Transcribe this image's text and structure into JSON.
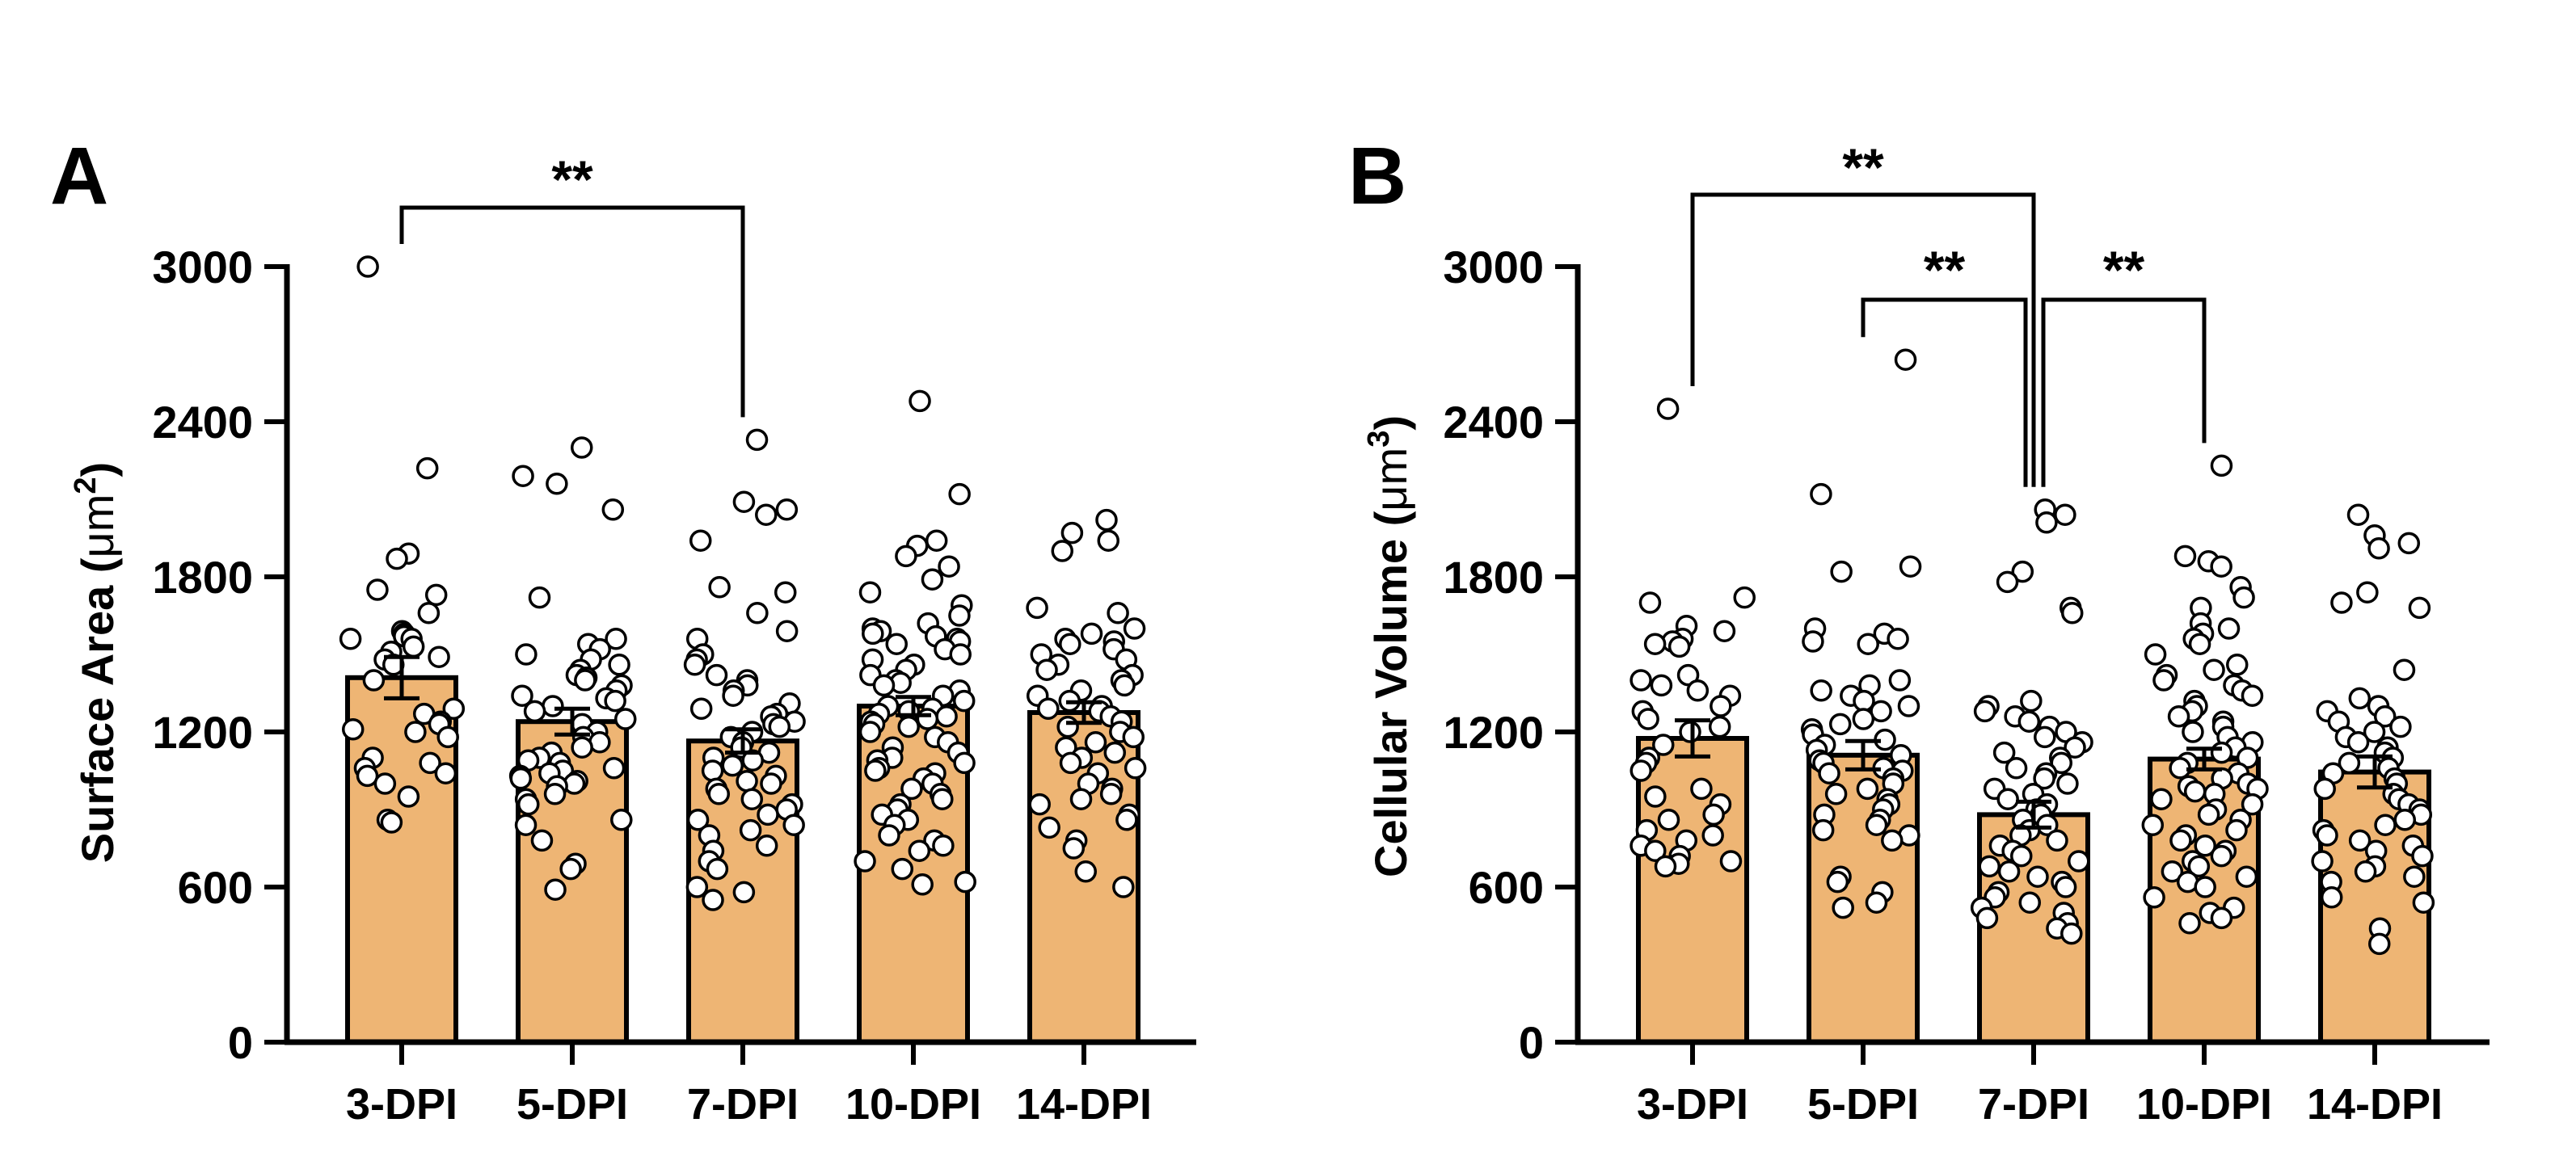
{
  "colors": {
    "bar_fill": "#eeb574",
    "bar_stroke": "#000000",
    "point_fill": "#ffffff",
    "point_stroke": "#000000"
  },
  "chart_data": [
    {
      "panel_label": "A",
      "type": "bar",
      "ylabel_main": "Surface Area (",
      "ylabel_unit": "μm",
      "ylabel_sup": "2",
      "ylabel_close": ")",
      "ylim": [
        0,
        3000
      ],
      "yticks": [
        "0",
        "600",
        "1200",
        "1800",
        "2400",
        "3000"
      ],
      "categories": [
        "3-DPI",
        "5-DPI",
        "7-DPI",
        "10-DPI",
        "14-DPI"
      ],
      "values": [
        1410,
        1240,
        1165,
        1300,
        1275
      ],
      "sem": [
        80,
        50,
        45,
        35,
        40
      ],
      "points": [
        [
          3000,
          2220,
          1890,
          1870,
          1750,
          1730,
          1660,
          1590,
          1580,
          1570,
          1560,
          1560,
          1530,
          1510,
          1490,
          1480,
          1460,
          1400,
          1290,
          1270,
          1240,
          1230,
          1210,
          1200,
          1180,
          1100,
          1080,
          1060,
          1040,
          1030,
          1000,
          950,
          860,
          850
        ],
        [
          2300,
          2190,
          2160,
          2060,
          1720,
          1560,
          1540,
          1520,
          1500,
          1480,
          1460,
          1440,
          1420,
          1410,
          1400,
          1380,
          1360,
          1340,
          1330,
          1320,
          1300,
          1280,
          1250,
          1230,
          1200,
          1180,
          1160,
          1140,
          1120,
          1100,
          1090,
          1080,
          1060,
          1050,
          1040,
          1030,
          1020,
          1010,
          1000,
          990,
          960,
          940,
          920,
          860,
          840,
          780,
          690,
          670,
          590
        ],
        [
          2330,
          2090,
          2060,
          2040,
          1940,
          1760,
          1740,
          1660,
          1590,
          1560,
          1500,
          1480,
          1460,
          1420,
          1400,
          1380,
          1360,
          1340,
          1310,
          1290,
          1270,
          1260,
          1240,
          1230,
          1220,
          1200,
          1180,
          1160,
          1140,
          1120,
          1100,
          1090,
          1070,
          1050,
          1030,
          1010,
          1000,
          980,
          960,
          940,
          920,
          900,
          880,
          860,
          840,
          820,
          800,
          760,
          740,
          700,
          670,
          600,
          580,
          550
        ],
        [
          2480,
          2120,
          1940,
          1920,
          1880,
          1840,
          1790,
          1740,
          1690,
          1650,
          1620,
          1600,
          1590,
          1580,
          1570,
          1560,
          1550,
          1540,
          1520,
          1500,
          1480,
          1460,
          1440,
          1420,
          1400,
          1390,
          1380,
          1360,
          1340,
          1320,
          1300,
          1290,
          1280,
          1270,
          1260,
          1250,
          1240,
          1230,
          1220,
          1200,
          1180,
          1160,
          1140,
          1120,
          1100,
          1090,
          1080,
          1060,
          1050,
          1040,
          1020,
          1000,
          980,
          960,
          940,
          920,
          900,
          880,
          860,
          840,
          800,
          780,
          760,
          740,
          700,
          670,
          620,
          610
        ],
        [
          2020,
          1970,
          1940,
          1900,
          1680,
          1660,
          1600,
          1580,
          1560,
          1550,
          1540,
          1520,
          1500,
          1480,
          1460,
          1440,
          1420,
          1400,
          1380,
          1360,
          1340,
          1320,
          1300,
          1290,
          1280,
          1260,
          1240,
          1220,
          1200,
          1180,
          1160,
          1140,
          1120,
          1100,
          1080,
          1060,
          1040,
          1000,
          980,
          960,
          940,
          920,
          880,
          860,
          830,
          780,
          750,
          660,
          600
        ]
      ],
      "significance": [
        {
          "from": 0,
          "to": 2,
          "label": "**"
        }
      ]
    },
    {
      "panel_label": "B",
      "type": "bar",
      "ylabel_main": "Cellular Volume (",
      "ylabel_unit": "μm",
      "ylabel_sup": "3",
      "ylabel_close": ")",
      "ylim": [
        0,
        3000
      ],
      "yticks": [
        "0",
        "600",
        "1200",
        "1800",
        "2400",
        "3000"
      ],
      "categories": [
        "3-DPI",
        "5-DPI",
        "7-DPI",
        "10-DPI",
        "14-DPI"
      ],
      "values": [
        1175,
        1110,
        880,
        1095,
        1045
      ],
      "sem": [
        70,
        55,
        50,
        40,
        60
      ],
      "points": [
        [
          2450,
          1720,
          1700,
          1610,
          1590,
          1560,
          1550,
          1540,
          1530,
          1420,
          1400,
          1380,
          1360,
          1340,
          1300,
          1280,
          1250,
          1220,
          1200,
          1150,
          1100,
          1080,
          1050,
          980,
          950,
          920,
          880,
          860,
          820,
          800,
          780,
          760,
          740,
          720,
          700,
          690,
          680
        ],
        [
          2640,
          2120,
          1840,
          1820,
          1600,
          1580,
          1560,
          1550,
          1540,
          1400,
          1380,
          1360,
          1340,
          1320,
          1300,
          1280,
          1250,
          1230,
          1210,
          1190,
          1170,
          1150,
          1130,
          1110,
          1090,
          1080,
          1060,
          1050,
          1040,
          1020,
          1000,
          980,
          960,
          940,
          920,
          900,
          880,
          860,
          840,
          820,
          800,
          780,
          640,
          620,
          580,
          540,
          520
        ],
        [
          2060,
          2040,
          2010,
          1820,
          1780,
          1680,
          1660,
          1320,
          1300,
          1280,
          1260,
          1240,
          1220,
          1200,
          1180,
          1160,
          1140,
          1120,
          1100,
          1080,
          1060,
          1040,
          1020,
          1000,
          980,
          960,
          940,
          920,
          900,
          880,
          860,
          840,
          820,
          800,
          780,
          760,
          740,
          720,
          700,
          680,
          660,
          640,
          620,
          600,
          580,
          560,
          540,
          520,
          500,
          480,
          460,
          440,
          420
        ],
        [
          2230,
          1880,
          1860,
          1840,
          1760,
          1720,
          1680,
          1620,
          1600,
          1580,
          1560,
          1540,
          1500,
          1460,
          1440,
          1420,
          1400,
          1380,
          1360,
          1340,
          1320,
          1300,
          1280,
          1260,
          1240,
          1220,
          1200,
          1180,
          1160,
          1140,
          1120,
          1100,
          1080,
          1060,
          1040,
          1020,
          1000,
          990,
          980,
          970,
          960,
          940,
          920,
          900,
          880,
          860,
          840,
          820,
          800,
          780,
          760,
          740,
          720,
          700,
          680,
          660,
          640,
          620,
          600,
          560,
          520,
          500,
          480,
          460
        ],
        [
          2040,
          1960,
          1930,
          1910,
          1740,
          1700,
          1680,
          1440,
          1330,
          1300,
          1280,
          1260,
          1240,
          1220,
          1200,
          1180,
          1160,
          1140,
          1120,
          1100,
          1080,
          1060,
          1040,
          1020,
          1000,
          980,
          960,
          940,
          920,
          900,
          880,
          860,
          840,
          820,
          800,
          780,
          760,
          740,
          720,
          700,
          680,
          660,
          640,
          620,
          560,
          540,
          440,
          380
        ]
      ],
      "significance": [
        {
          "from": 0,
          "to": 2,
          "label": "**"
        },
        {
          "from": 1,
          "to": 2,
          "label": "**"
        },
        {
          "from": 2,
          "to": 3,
          "label": "**"
        }
      ]
    }
  ]
}
